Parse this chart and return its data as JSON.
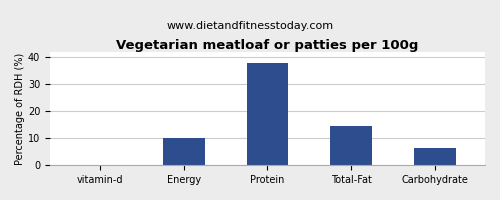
{
  "title": "Vegetarian meatloaf or patties per 100g",
  "subtitle": "www.dietandfitnesstoday.com",
  "categories": [
    "vitamin-d",
    "Energy",
    "Protein",
    "Total-Fat",
    "Carbohydrate"
  ],
  "values": [
    0,
    10,
    38,
    14.5,
    6.5
  ],
  "bar_color": "#2e4d8e",
  "ylabel": "Percentage of RDH (%)",
  "ylim": [
    0,
    42
  ],
  "yticks": [
    0,
    10,
    20,
    30,
    40
  ],
  "background_color": "#ececec",
  "plot_bg_color": "#ffffff",
  "title_fontsize": 9.5,
  "subtitle_fontsize": 8,
  "tick_fontsize": 7,
  "ylabel_fontsize": 7
}
